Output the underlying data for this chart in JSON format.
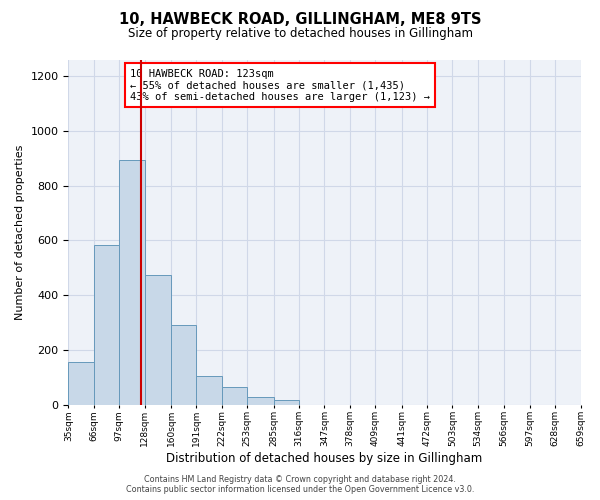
{
  "title": "10, HAWBECK ROAD, GILLINGHAM, ME8 9TS",
  "subtitle": "Size of property relative to detached houses in Gillingham",
  "xlabel": "Distribution of detached houses by size in Gillingham",
  "ylabel": "Number of detached properties",
  "bar_values": [
    155,
    585,
    895,
    475,
    290,
    105,
    65,
    28,
    15,
    0,
    0,
    0,
    0,
    0,
    0,
    0,
    0,
    0,
    0,
    0
  ],
  "bin_edges": [
    35,
    66,
    97,
    128,
    160,
    191,
    222,
    253,
    285,
    316,
    347,
    378,
    409,
    441,
    472,
    503,
    534,
    566,
    597,
    628,
    659
  ],
  "bar_color": "#c8d8e8",
  "bar_edge_color": "#6699bb",
  "property_line_x": 123,
  "property_line_color": "#cc0000",
  "ylim": [
    0,
    1260
  ],
  "yticks": [
    0,
    200,
    400,
    600,
    800,
    1000,
    1200
  ],
  "annotation_title": "10 HAWBECK ROAD: 123sqm",
  "annotation_line1": "← 55% of detached houses are smaller (1,435)",
  "annotation_line2": "43% of semi-detached houses are larger (1,123) →",
  "footer1": "Contains HM Land Registry data © Crown copyright and database right 2024.",
  "footer2": "Contains public sector information licensed under the Open Government Licence v3.0.",
  "tick_labels": [
    "35sqm",
    "66sqm",
    "97sqm",
    "128sqm",
    "160sqm",
    "191sqm",
    "222sqm",
    "253sqm",
    "285sqm",
    "316sqm",
    "347sqm",
    "378sqm",
    "409sqm",
    "441sqm",
    "472sqm",
    "503sqm",
    "534sqm",
    "566sqm",
    "597sqm",
    "628sqm",
    "659sqm"
  ],
  "grid_color": "#d0d8e8",
  "background_color": "#eef2f8"
}
